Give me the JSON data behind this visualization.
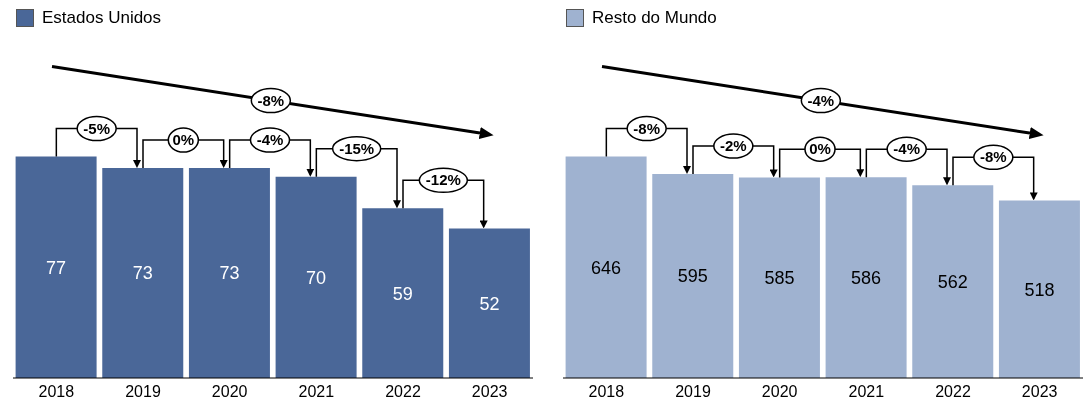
{
  "chart_data": [
    {
      "type": "bar",
      "categories": [
        "2018",
        "2019",
        "2020",
        "2021",
        "2022",
        "2023"
      ],
      "series": [
        {
          "name": "Estados Unidos",
          "color": "#4a6798",
          "values": [
            77,
            73,
            73,
            70,
            59,
            52
          ]
        }
      ],
      "data_labels": true,
      "legend": "top left",
      "annotations": [
        "-5%",
        "0%",
        "-4%",
        "-15%",
        "-12%",
        "-8%"
      ]
    },
    {
      "type": "bar",
      "categories": [
        "2018",
        "2019",
        "2020",
        "2021",
        "2022",
        "2023"
      ],
      "series": [
        {
          "name": "Resto do Mundo",
          "color": "#9fb2d0",
          "values": [
            646,
            595,
            585,
            586,
            562,
            518
          ]
        }
      ],
      "data_labels": true,
      "legend": "top left",
      "annotations": [
        "-8%",
        "-2%",
        "0%",
        "-4%",
        "-8%",
        "-4%"
      ]
    }
  ]
}
